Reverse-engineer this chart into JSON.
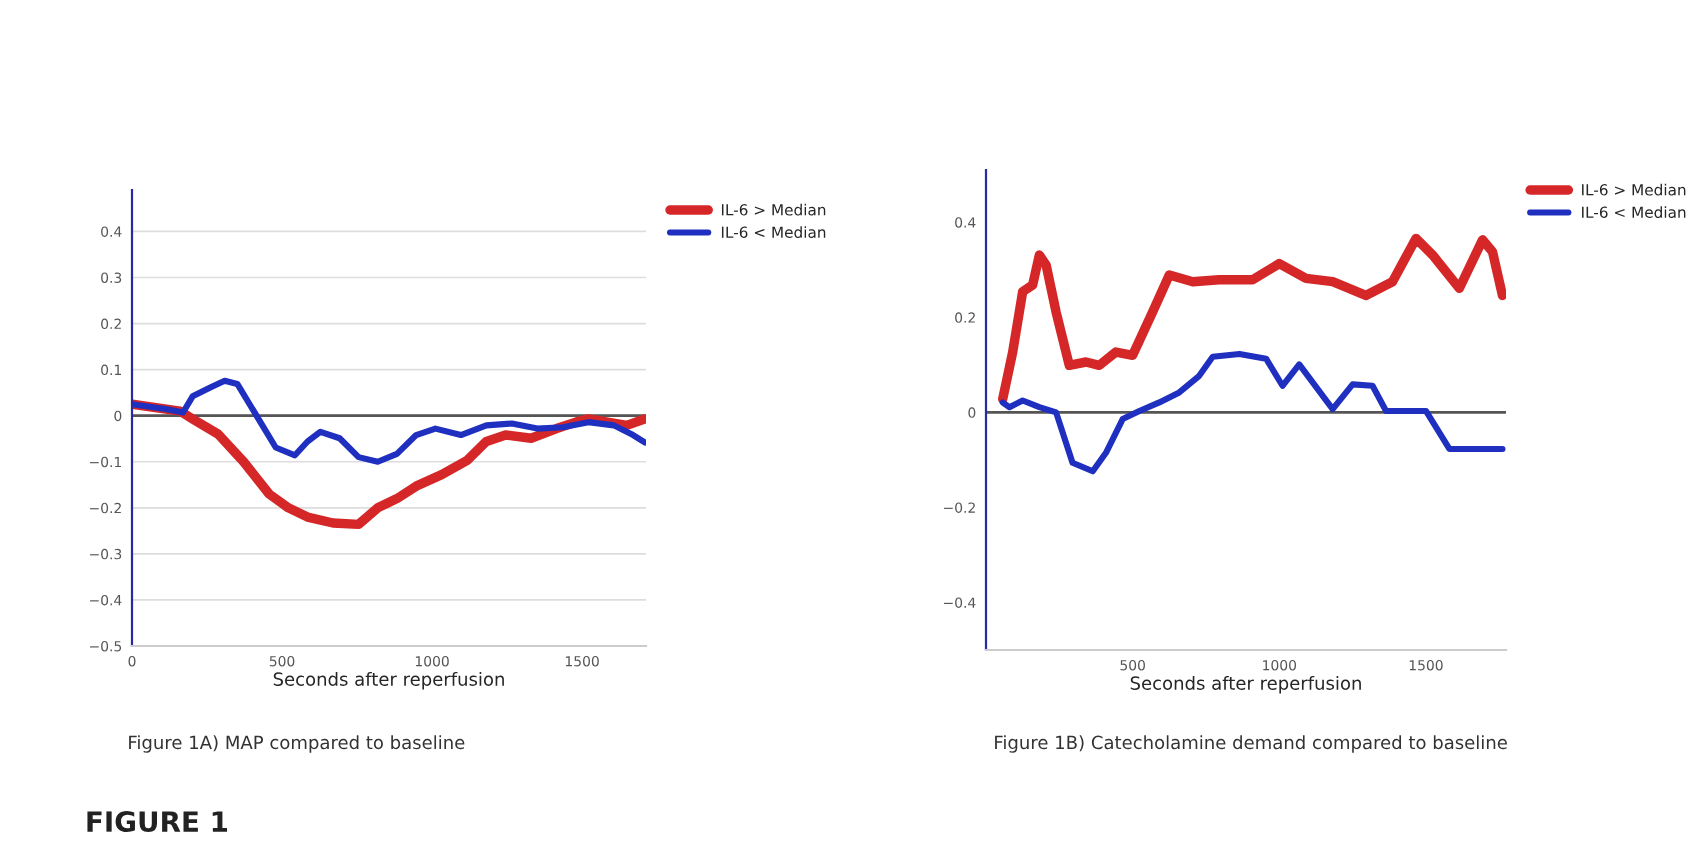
{
  "chart_data": [
    {
      "type": "line",
      "xlabel": "Seconds after reperfusion",
      "xlim": [
        0,
        1713
      ],
      "xticks": [
        0,
        500,
        1000,
        1500
      ],
      "ylim": [
        -0.5,
        0.49
      ],
      "yticks": [
        {
          "value": -0.5,
          "label": "−0.5"
        },
        {
          "value": -0.4,
          "label": "−0.4"
        },
        {
          "value": -0.3,
          "label": "−0.3"
        },
        {
          "value": -0.2,
          "label": "−0.2"
        },
        {
          "value": -0.1,
          "label": "−0.1"
        },
        0,
        0.1,
        0.2,
        0.3,
        0.4
      ],
      "grid": "y",
      "legend": "top right",
      "ref_lines": [
        {
          "axis": "y",
          "value": 0,
          "color": "#555555"
        }
      ],
      "annotations": [
        "Figure 1A) MAP compared to baseline",
        "FIGURE 1"
      ],
      "series": [
        {
          "name": "IL-6 > Median",
          "color": "#d62728",
          "x": [
            0,
            160,
            202,
            287,
            372,
            457,
            521,
            585,
            670,
            755,
            819,
            883,
            947,
            1032,
            1117,
            1181,
            1245,
            1330,
            1415,
            1479,
            1521,
            1585,
            1649,
            1709
          ],
          "values": [
            0.025,
            0.01,
            -0.007,
            -0.04,
            -0.1,
            -0.17,
            -0.2,
            -0.22,
            -0.233,
            -0.236,
            -0.2,
            -0.18,
            -0.153,
            -0.128,
            -0.097,
            -0.056,
            -0.042,
            -0.049,
            -0.028,
            -0.014,
            -0.007,
            -0.014,
            -0.021,
            -0.007
          ]
        },
        {
          "name": "IL-6 < Median",
          "color": "#1f2fbf",
          "x": [
            0,
            117,
            170,
            202,
            266,
            309,
            351,
            415,
            479,
            543,
            585,
            628,
            692,
            755,
            819,
            883,
            947,
            1011,
            1096,
            1181,
            1266,
            1351,
            1436,
            1521,
            1606,
            1670,
            1709
          ],
          "values": [
            0.025,
            0.014,
            0.007,
            0.042,
            0.063,
            0.076,
            0.069,
            0,
            -0.069,
            -0.086,
            -0.056,
            -0.035,
            -0.049,
            -0.09,
            -0.1,
            -0.083,
            -0.042,
            -0.028,
            -0.042,
            -0.021,
            -0.017,
            -0.028,
            -0.025,
            -0.014,
            -0.021,
            -0.042,
            -0.058
          ]
        }
      ]
    },
    {
      "type": "line",
      "xlabel": "Seconds after reperfusion",
      "xlim": [
        0,
        1773
      ],
      "xticks": [
        500,
        1000,
        1500
      ],
      "ylim": [
        -0.5,
        0.51
      ],
      "yticks": [
        {
          "value": -0.4,
          "label": "−0.4"
        },
        {
          "value": -0.2,
          "label": "−0.2"
        },
        0,
        0.2,
        0.4
      ],
      "legend": "top right",
      "ref_lines": [
        {
          "axis": "y",
          "value": 0,
          "color": "#555555"
        }
      ],
      "annotations": [
        "Figure 1B) Catecholamine demand compared to baseline"
      ],
      "series": [
        {
          "name": "IL-6 > Median",
          "color": "#d62728",
          "x": [
            57,
            91,
            125,
            159,
            182,
            205,
            239,
            284,
            341,
            386,
            443,
            500,
            568,
            625,
            705,
            795,
            909,
            1000,
            1091,
            1182,
            1295,
            1386,
            1466,
            1523,
            1614,
            1693,
            1727,
            1761
          ],
          "values": [
            0.028,
            0.127,
            0.254,
            0.268,
            0.331,
            0.31,
            0.211,
            0.099,
            0.106,
            0.099,
            0.127,
            0.12,
            0.211,
            0.289,
            0.275,
            0.279,
            0.279,
            0.313,
            0.282,
            0.275,
            0.246,
            0.275,
            0.366,
            0.331,
            0.261,
            0.363,
            0.338,
            0.246
          ]
        },
        {
          "name": "IL-6 < Median",
          "color": "#1f2fbf",
          "x": [
            57,
            80,
            125,
            182,
            239,
            295,
            364,
            409,
            466,
            523,
            591,
            659,
            727,
            773,
            864,
            955,
            1011,
            1068,
            1182,
            1250,
            1318,
            1364,
            1500,
            1580,
            1761
          ],
          "values": [
            0.021,
            0.011,
            0.025,
            0.011,
            0,
            -0.106,
            -0.124,
            -0.085,
            -0.014,
            0.003,
            0.021,
            0.042,
            0.077,
            0.117,
            0.123,
            0.113,
            0.056,
            0.101,
            0.007,
            0.059,
            0.056,
            0.003,
            0.003,
            -0.077,
            -0.077
          ]
        }
      ]
    }
  ]
}
